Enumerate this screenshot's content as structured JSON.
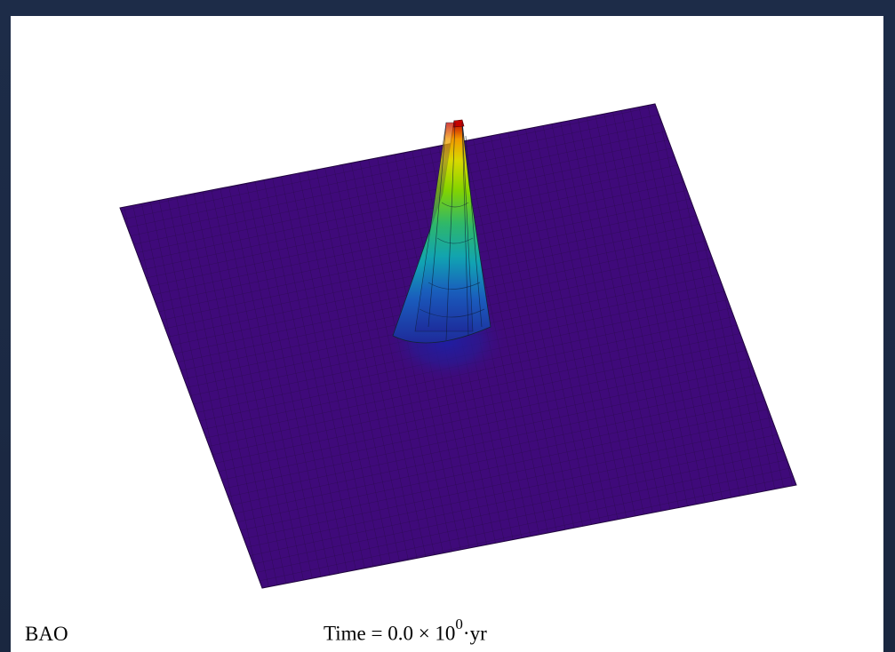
{
  "window": {
    "frame_color": "#1b2a44",
    "canvas_color": "#ffffff"
  },
  "figure": {
    "label": "BAO",
    "time_prefix": "Time = 0.0 × 10",
    "time_exponent": "0",
    "time_unit": "·yr",
    "surface": {
      "base_color": "#3f0a7a",
      "grid_line_color": "#1a0a2a",
      "peak_colors": [
        "#c40000",
        "#f29a00",
        "#d9d900",
        "#84d400",
        "#2eb86b",
        "#11a3b3",
        "#1a5dbd",
        "#1e2a9a"
      ]
    }
  }
}
